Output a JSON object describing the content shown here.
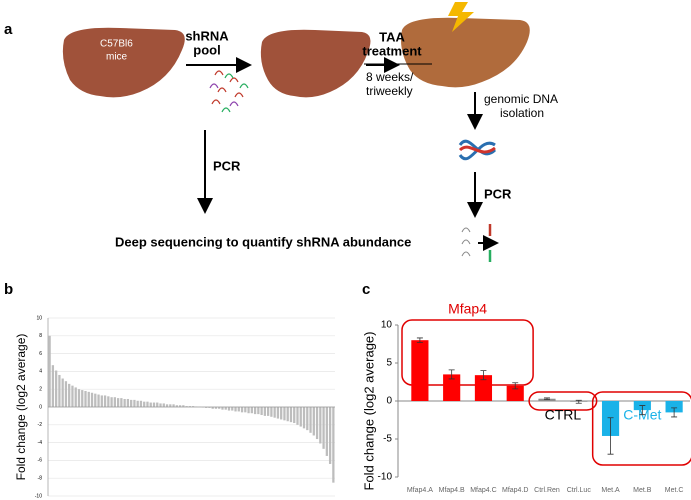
{
  "panel_labels": [
    "a",
    "b",
    "c"
  ],
  "diagram": {
    "mouse_label": [
      "C57Bl6",
      "mice"
    ],
    "step1": [
      "shRNA",
      "pool"
    ],
    "step2": [
      "TAA",
      "treatment"
    ],
    "step2_note": [
      "8 weeks/",
      "triweekly"
    ],
    "step3": [
      "genomic DNA",
      "isolation"
    ],
    "pcr_left": "PCR",
    "pcr_right": "PCR",
    "result": "Deep sequencing to quantify shRNA abundance"
  },
  "chart_data": [
    {
      "type": "bar",
      "y_label": "Fold change (log2 average)",
      "color": "#bdbdbd",
      "grid": true,
      "ylim": [
        -10,
        10
      ],
      "yticks": [
        -10,
        -8,
        -6,
        -4,
        -2,
        0,
        2,
        4,
        6,
        8,
        10
      ],
      "values": [
        8,
        4.7,
        4.1,
        3.6,
        3.2,
        2.9,
        2.6,
        2.4,
        2.2,
        2.0,
        1.9,
        1.8,
        1.7,
        1.6,
        1.5,
        1.4,
        1.3,
        1.3,
        1.2,
        1.1,
        1.1,
        1.0,
        1.0,
        0.9,
        0.9,
        0.8,
        0.8,
        0.7,
        0.7,
        0.6,
        0.6,
        0.5,
        0.5,
        0.5,
        0.4,
        0.4,
        0.3,
        0.3,
        0.3,
        0.2,
        0.2,
        0.2,
        0.1,
        0.1,
        0.1,
        0.05,
        0.02,
        -0.05,
        -0.1,
        -0.1,
        -0.2,
        -0.2,
        -0.2,
        -0.3,
        -0.3,
        -0.4,
        -0.4,
        -0.5,
        -0.5,
        -0.6,
        -0.6,
        -0.7,
        -0.7,
        -0.8,
        -0.8,
        -0.9,
        -1.0,
        -1.0,
        -1.1,
        -1.2,
        -1.3,
        -1.4,
        -1.5,
        -1.6,
        -1.7,
        -1.8,
        -2.0,
        -2.2,
        -2.4,
        -2.6,
        -2.9,
        -3.2,
        -3.6,
        -4.1,
        -4.7,
        -5.5,
        -6.4,
        -8.5
      ]
    },
    {
      "type": "errorbar",
      "y_label": "Fold change (log2 average)",
      "categories": [
        "Mfap4.A",
        "Mfap4.B",
        "Mfap4.C",
        "Mfap4.D",
        "Ctrl.Ren",
        "Ctrl.Luc",
        "Met.A",
        "Met.B",
        "Met.C"
      ],
      "values": [
        8,
        3.5,
        3.4,
        2,
        0.3,
        -0.1,
        -4.6,
        -1.2,
        -1.5
      ],
      "errors": [
        0.3,
        0.6,
        0.6,
        0.4,
        0.1,
        0.2,
        2.4,
        0.6,
        0.6
      ],
      "colors": [
        "#ff0000",
        "#ff0000",
        "#ff0000",
        "#ff0000",
        "#8c8c8c",
        "#8c8c8c",
        "#1ab2e8",
        "#1ab2e8",
        "#1ab2e8"
      ],
      "ylim": [
        -10,
        10
      ],
      "yticks": [
        -10,
        -5,
        0,
        5,
        10
      ],
      "groups": [
        {
          "label": "Mfap4",
          "color": "#e00000"
        },
        {
          "label": "CTRL",
          "color": "#000000"
        },
        {
          "label": "C-Met",
          "color": "#1ab2e8"
        }
      ]
    }
  ]
}
